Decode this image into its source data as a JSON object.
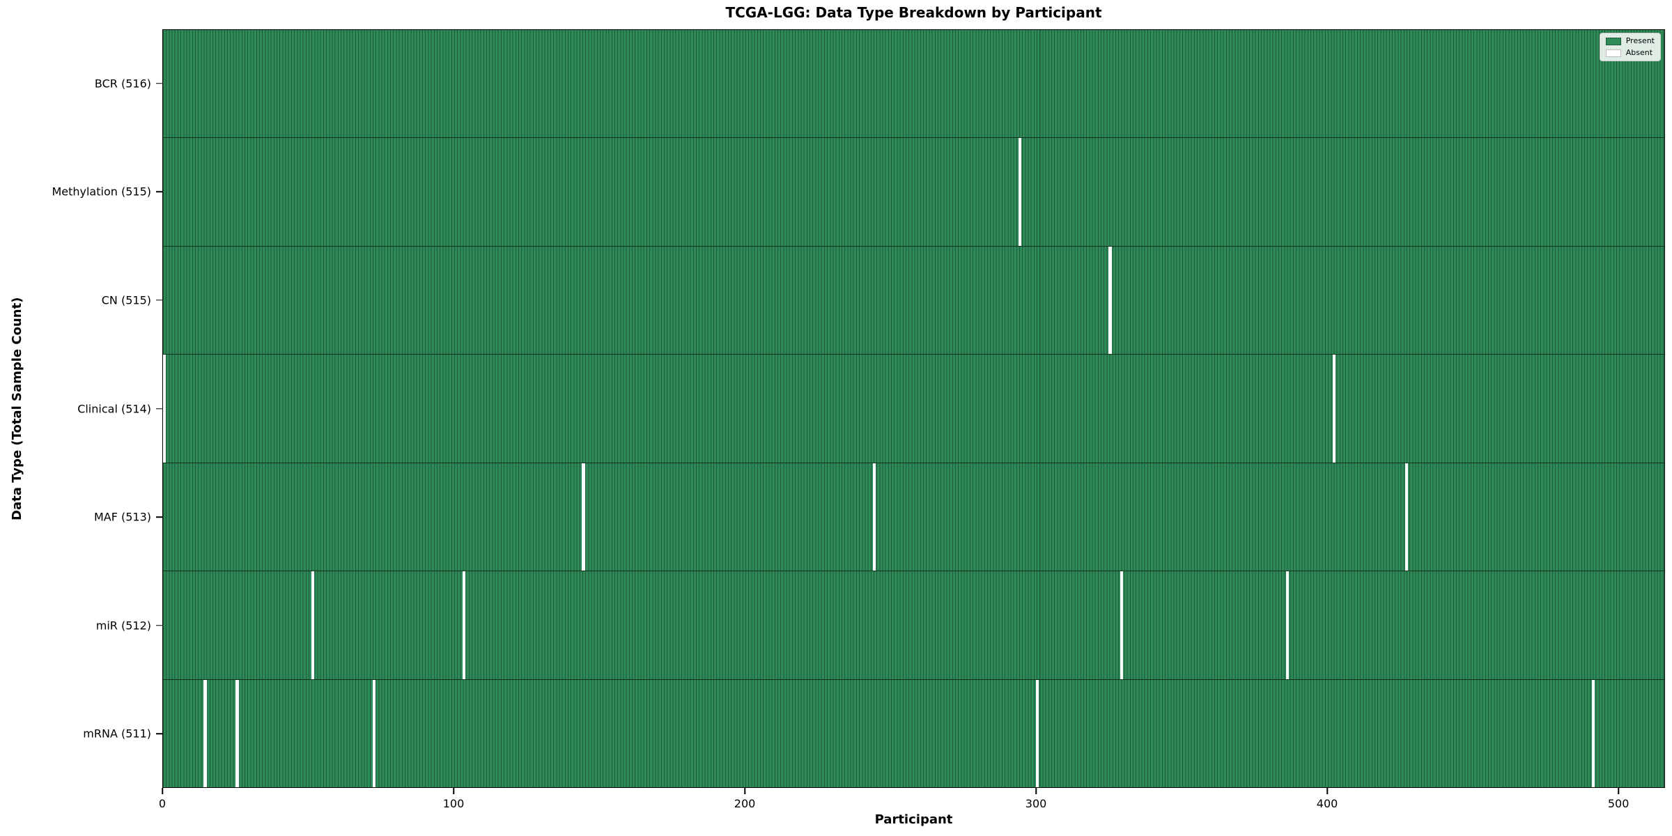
{
  "chart_data": {
    "type": "heatmap",
    "title": "TCGA-LGG: Data Type Breakdown by Participant",
    "xlabel": "Participant",
    "ylabel": "Data Type (Total Sample Count)",
    "x_ticks": [
      0,
      100,
      200,
      300,
      400,
      500
    ],
    "xlim": [
      0,
      516
    ],
    "n_participants": 516,
    "grid": false,
    "legend_position": "upper right",
    "legend": [
      {
        "label": "Present",
        "color": "#2e8b57"
      },
      {
        "label": "Absent",
        "color": "#ffffff"
      }
    ],
    "colors": {
      "present": "#2e8b57",
      "present_stripe": "#1b5a39",
      "absent": "#fdfdfd",
      "row_divider": "#0e2f1d",
      "axis": "#000000"
    },
    "rows": [
      {
        "label": "BCR (516)",
        "name": "bcr",
        "total": 516,
        "absent_participants": []
      },
      {
        "label": "Methylation (515)",
        "name": "methylation",
        "total": 515,
        "absent_participants": [
          294
        ]
      },
      {
        "label": "CN (515)",
        "name": "cn",
        "total": 515,
        "absent_participants": [
          325
        ]
      },
      {
        "label": "Clinical (514)",
        "name": "clinical",
        "total": 514,
        "absent_participants": [
          0,
          402
        ]
      },
      {
        "label": "MAF (513)",
        "name": "maf",
        "total": 513,
        "absent_participants": [
          144,
          244,
          427
        ]
      },
      {
        "label": "miR (512)",
        "name": "mir",
        "total": 512,
        "absent_participants": [
          51,
          103,
          329,
          386
        ]
      },
      {
        "label": "mRNA (511)",
        "name": "mrna",
        "total": 511,
        "absent_participants": [
          14,
          25,
          72,
          300,
          491
        ]
      }
    ]
  }
}
